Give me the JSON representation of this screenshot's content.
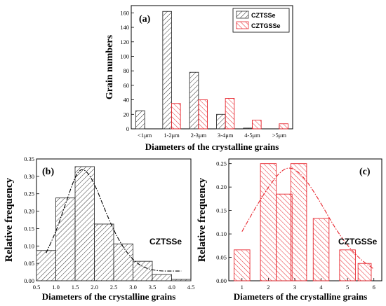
{
  "colors": {
    "black": "#333333",
    "red": "#e8272f"
  },
  "chart_data": [
    {
      "type": "bar",
      "panel_label": "(a)",
      "categories": [
        "<1μm",
        "1-2μm",
        "2-3μm",
        "3-4μm",
        "4-5μm",
        ">5μm"
      ],
      "series": [
        {
          "name": "CZTSSe",
          "values": [
            25,
            162,
            78,
            20,
            1,
            0
          ]
        },
        {
          "name": "CZTGSSe",
          "values": [
            0,
            35,
            40,
            42,
            12,
            7
          ]
        }
      ],
      "xlabel": "Diameters of the crystalline grains",
      "ylabel": "Grain numbers",
      "ylim": [
        0,
        170
      ],
      "yticks": [
        "0",
        "20",
        "40",
        "60",
        "80",
        "100",
        "120",
        "140",
        "160"
      ],
      "legend_position": "top-right",
      "grid": false
    },
    {
      "type": "bar",
      "panel_label": "(b)",
      "series_label": "CZTSSe",
      "bin_width": 0.5,
      "x": [
        0.75,
        1.25,
        1.75,
        2.25,
        2.75,
        3.25,
        3.75,
        4.25
      ],
      "values": [
        0.087,
        0.238,
        0.328,
        0.163,
        0.106,
        0.056,
        0.018,
        0.004
      ],
      "fit": {
        "style": "dash-dot",
        "points": [
          [
            0.75,
            0.08
          ],
          [
            1.0,
            0.14
          ],
          [
            1.25,
            0.22
          ],
          [
            1.5,
            0.3
          ],
          [
            1.65,
            0.322
          ],
          [
            1.8,
            0.315
          ],
          [
            2.0,
            0.28
          ],
          [
            2.25,
            0.21
          ],
          [
            2.5,
            0.145
          ],
          [
            2.75,
            0.095
          ],
          [
            3.0,
            0.06
          ],
          [
            3.25,
            0.04
          ],
          [
            3.5,
            0.031
          ],
          [
            3.75,
            0.028
          ],
          [
            4.0,
            0.028
          ],
          [
            4.25,
            0.028
          ]
        ]
      },
      "xlabel": "Diameters of the crystalline grains",
      "ylabel": "Relative frequency",
      "xlim": [
        0.5,
        4.5
      ],
      "ylim": [
        0,
        0.35
      ],
      "xticks": [
        "0.5",
        "1.0",
        "1.5",
        "2.0",
        "2.5",
        "3.0",
        "3.5",
        "4.0",
        "4.5"
      ],
      "yticks": [
        "0.00",
        "0.05",
        "0.10",
        "0.15",
        "0.20",
        "0.25",
        "0.30",
        "0.35"
      ],
      "grid": false
    },
    {
      "type": "bar",
      "panel_label": "(c)",
      "series_label": "CZTGSSe",
      "bin_width": 1,
      "x": [
        1,
        2,
        2.6,
        3.15,
        4,
        5,
        5.65
      ],
      "widths": [
        0.6,
        0.6,
        0.6,
        0.6,
        0.6,
        0.6,
        0.5
      ],
      "values": [
        0.066,
        0.25,
        0.185,
        0.25,
        0.133,
        0.066,
        0.037
      ],
      "fit": {
        "style": "dash-dot",
        "points": [
          [
            1.0,
            0.105
          ],
          [
            1.5,
            0.155
          ],
          [
            2.0,
            0.2
          ],
          [
            2.4,
            0.23
          ],
          [
            2.75,
            0.243
          ],
          [
            3.1,
            0.235
          ],
          [
            3.5,
            0.21
          ],
          [
            4.0,
            0.165
          ],
          [
            4.5,
            0.115
          ],
          [
            5.0,
            0.075
          ],
          [
            5.5,
            0.045
          ],
          [
            6.0,
            0.025
          ]
        ]
      },
      "xlabel": "Diameters of the crystalline grains",
      "ylabel": "Relative frequency",
      "xlim": [
        0.5,
        6.3
      ],
      "ylim": [
        0,
        0.26
      ],
      "xticks": [
        "1",
        "2",
        "3",
        "4",
        "5",
        "6"
      ],
      "yticks": [
        "0.00",
        "0.05",
        "0.10",
        "0.15",
        "0.20",
        "0.25"
      ],
      "grid": false
    }
  ]
}
